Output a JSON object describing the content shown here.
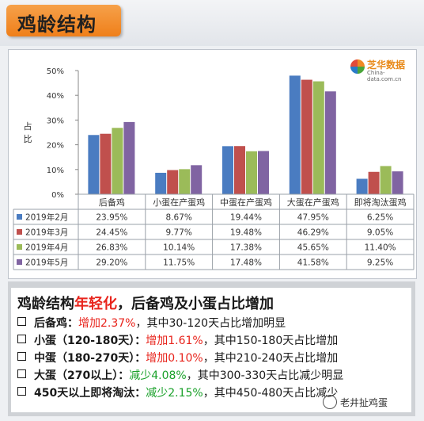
{
  "header": {
    "title": "鸡龄结构"
  },
  "logo": {
    "name": "芝华数据",
    "url": "China-data.com.cn"
  },
  "chart_data": {
    "type": "bar",
    "ylabel": "占比",
    "ylim": [
      0,
      50
    ],
    "yticks": [
      "0%",
      "10%",
      "20%",
      "30%",
      "40%",
      "50%"
    ],
    "grid": false,
    "legend": "table-below",
    "categories": [
      "后备鸡",
      "小蛋在产蛋鸡",
      "中蛋在产蛋鸡",
      "大蛋在产蛋鸡",
      "即将淘汰蛋鸡"
    ],
    "series": [
      {
        "name": "2019年2月",
        "color": "#4a7cc1",
        "values": [
          23.95,
          8.67,
          19.44,
          47.95,
          6.25
        ],
        "labels": [
          "23.95%",
          "8.67%",
          "19.44%",
          "47.95%",
          "6.25%"
        ]
      },
      {
        "name": "2019年3月",
        "color": "#c0504d",
        "values": [
          24.45,
          9.77,
          19.48,
          46.29,
          9.05
        ],
        "labels": [
          "24.45%",
          "9.77%",
          "19.48%",
          "46.29%",
          "9.05%"
        ]
      },
      {
        "name": "2019年4月",
        "color": "#9bbb59",
        "values": [
          26.83,
          10.14,
          17.38,
          45.65,
          11.4
        ],
        "labels": [
          "26.83%",
          "10.14%",
          "17.38%",
          "45.65%",
          "11.40%"
        ]
      },
      {
        "name": "2019年5月",
        "color": "#8064a2",
        "values": [
          29.2,
          11.75,
          17.48,
          41.58,
          9.25
        ],
        "labels": [
          "29.20%",
          "11.75%",
          "17.48%",
          "41.58%",
          "9.25%"
        ]
      }
    ]
  },
  "summary": {
    "title_a": "鸡龄结构",
    "title_b": "年轻化",
    "title_c": "，后备鸡及小蛋占比增加",
    "items": [
      {
        "cat": "后备鸡：",
        "change": "增加2.37%",
        "detail": "，其中30-120天占比增加明显"
      },
      {
        "cat": "小蛋（120-180天）：",
        "change": "增加1.61%",
        "detail": "，其中150-180天占比增加"
      },
      {
        "cat": "中蛋（180-270天）：",
        "change": "增加0.10%",
        "detail": "，其中210-240天占比增加"
      },
      {
        "cat": "大蛋（270以上）：",
        "change": "减少4.08%",
        "detail": "，其中300-330天占比减少明显"
      },
      {
        "cat": "450天以上即将淘汰：",
        "change": "减少2.15%",
        "detail": "，其中450-480天占比减少"
      }
    ]
  },
  "watermark": "老井扯鸡蛋"
}
